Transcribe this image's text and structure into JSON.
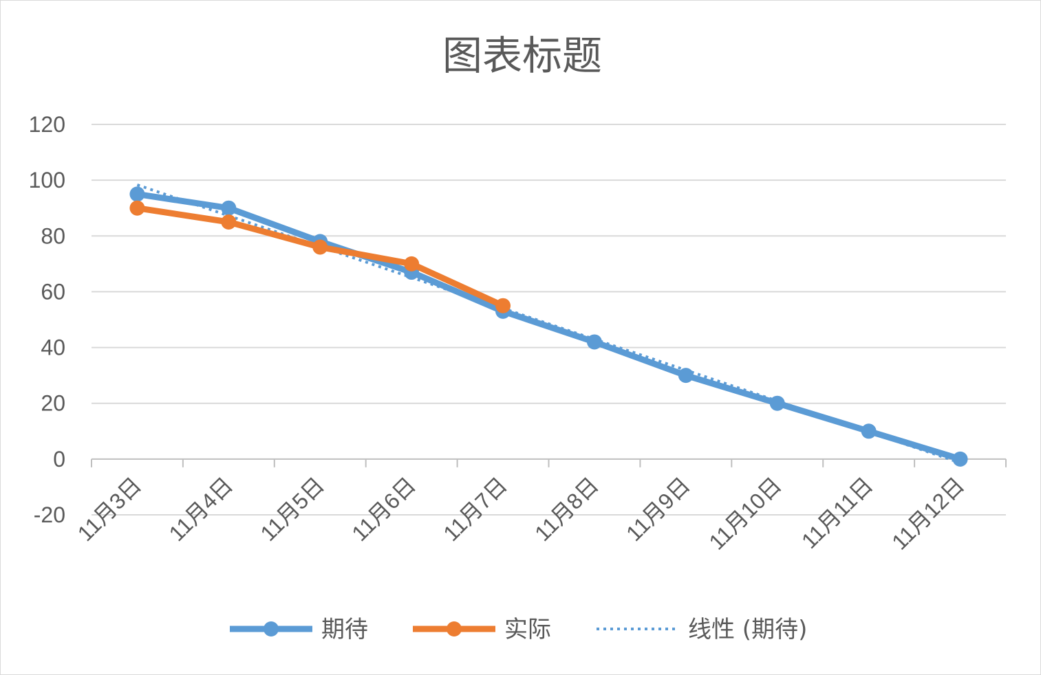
{
  "chart_data": {
    "type": "line",
    "title": "图表标题",
    "categories": [
      "11月3日",
      "11月4日",
      "11月5日",
      "11月6日",
      "11月7日",
      "11月8日",
      "11月9日",
      "11月10日",
      "11月11日",
      "11月12日"
    ],
    "series": [
      {
        "name": "期待",
        "color": "#5b9bd5",
        "values": [
          95,
          90,
          78,
          67,
          53,
          42,
          30,
          20,
          10,
          0
        ]
      },
      {
        "name": "实际",
        "color": "#ed7d31",
        "values": [
          90,
          85,
          76,
          70,
          55,
          null,
          null,
          null,
          null,
          null
        ]
      }
    ],
    "trendline": {
      "name": "线性 (期待)",
      "of": "期待",
      "style": "dotted",
      "color": "#5b9bd5"
    },
    "ylim": [
      -20,
      120
    ],
    "yticks": [
      120,
      100,
      80,
      60,
      40,
      20,
      0,
      -20
    ],
    "ytick_labels": [
      "120",
      "100",
      "80",
      "60",
      "40",
      "20",
      "0",
      "-20"
    ],
    "xlabel": "",
    "ylabel": "",
    "grid": true,
    "legend": "bottom",
    "legend_labels": [
      "期待",
      "实际",
      "线性 (期待)"
    ]
  }
}
